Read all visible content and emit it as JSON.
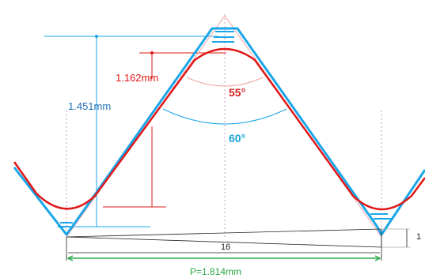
{
  "labels": {
    "red_height": "1.162mm",
    "blue_height": "1.451mm",
    "red_angle": "55°",
    "blue_angle": "60°",
    "taper_length": "16",
    "taper_rise": "1",
    "pitch": "P=1.814mm"
  },
  "colors": {
    "red_profile": "#e01818",
    "blue_profile": "#1aa6e8",
    "blue_dim": "#1f6fb5",
    "green_dim": "#2aa84a",
    "construction": "#f2a3a3"
  }
}
